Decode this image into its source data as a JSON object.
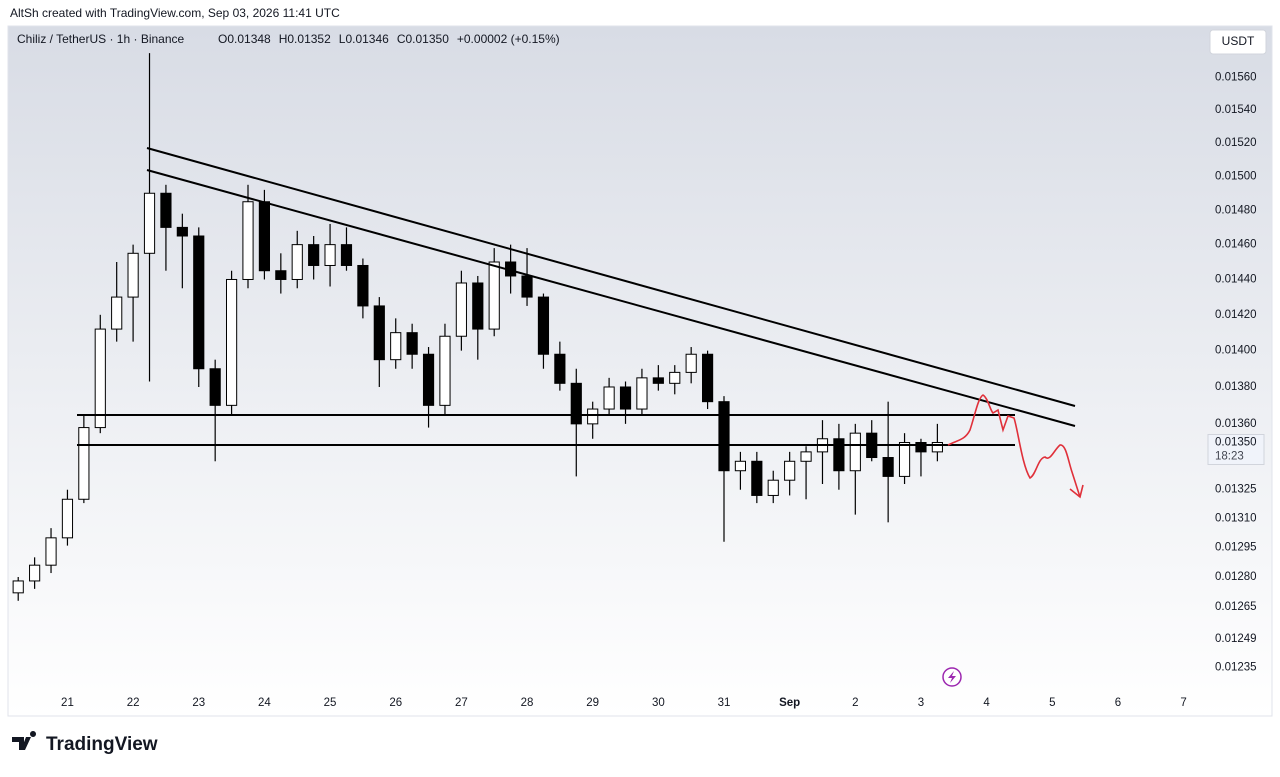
{
  "header": "AltSh created with TradingView.com, Sep 03, 2026 11:41 UTC",
  "brand": "TradingView",
  "chart_data": {
    "type": "candlestick",
    "symbol": "Chiliz / TetherUS · 1h · Binance",
    "legend_values": [
      "O0.01348",
      "H0.01352",
      "L0.01346",
      "C0.01350",
      "+0.00002 (+0.15%)"
    ],
    "currency": "USDT",
    "last_price": {
      "value": 0.0135,
      "label": "0.01350"
    },
    "countdown": "18:23",
    "log": true,
    "grid": false,
    "up_color": "#ffffff",
    "down_color": "#000000",
    "edge_color": "#000000",
    "ylim": [
      0.01224,
      0.01592
    ],
    "yticks": [
      {
        "value": 0.0156,
        "label": "0.01560"
      },
      {
        "value": 0.0154,
        "label": "0.01540"
      },
      {
        "value": 0.0152,
        "label": "0.01520"
      },
      {
        "value": 0.015,
        "label": "0.01500"
      },
      {
        "value": 0.0148,
        "label": "0.01480"
      },
      {
        "value": 0.0146,
        "label": "0.01460"
      },
      {
        "value": 0.0144,
        "label": "0.01440"
      },
      {
        "value": 0.0142,
        "label": "0.01420"
      },
      {
        "value": 0.014,
        "label": "0.01400"
      },
      {
        "value": 0.0138,
        "label": "0.01380"
      },
      {
        "value": 0.0136,
        "label": "0.01360"
      },
      {
        "value": 0.01325,
        "label": "0.01325"
      },
      {
        "value": 0.0131,
        "label": "0.01310"
      },
      {
        "value": 0.01295,
        "label": "0.01295"
      },
      {
        "value": 0.0128,
        "label": "0.01280"
      },
      {
        "value": 0.01265,
        "label": "0.01265"
      },
      {
        "value": 0.01249,
        "label": "0.01249"
      },
      {
        "value": 0.01235,
        "label": "0.01235"
      }
    ],
    "xlim": [
      "2026-08-20 03:00",
      "2026-09-07 06:00"
    ],
    "xticks": [
      {
        "value": "2026-08-21 00:00",
        "label": "21"
      },
      {
        "value": "2026-08-22 00:00",
        "label": "22"
      },
      {
        "value": "2026-08-23 00:00",
        "label": "23"
      },
      {
        "value": "2026-08-24 00:00",
        "label": "24"
      },
      {
        "value": "2026-08-25 00:00",
        "label": "25"
      },
      {
        "value": "2026-08-26 00:00",
        "label": "26"
      },
      {
        "value": "2026-08-27 00:00",
        "label": "27"
      },
      {
        "value": "2026-08-28 00:00",
        "label": "28"
      },
      {
        "value": "2026-08-29 00:00",
        "label": "29"
      },
      {
        "value": "2026-08-30 00:00",
        "label": "30"
      },
      {
        "value": "2026-08-31 00:00",
        "label": "31"
      },
      {
        "value": "2026-09-01 00:00",
        "label": "Sep"
      },
      {
        "value": "2026-09-02 00:00",
        "label": "2"
      },
      {
        "value": "2026-09-03 00:00",
        "label": "3"
      },
      {
        "value": "2026-09-04 00:00",
        "label": "4"
      },
      {
        "value": "2026-09-05 00:00",
        "label": "5"
      },
      {
        "value": "2026-09-06 00:00",
        "label": "6"
      },
      {
        "value": "2026-09-07 00:00",
        "label": "7"
      }
    ],
    "x": [
      "2026-08-20 06:00",
      "2026-08-20 12:00",
      "2026-08-20 18:00",
      "2026-08-21 00:00",
      "2026-08-21 06:00",
      "2026-08-21 12:00",
      "2026-08-21 18:00",
      "2026-08-22 00:00",
      "2026-08-22 06:00",
      "2026-08-22 12:00",
      "2026-08-22 18:00",
      "2026-08-23 00:00",
      "2026-08-23 06:00",
      "2026-08-23 12:00",
      "2026-08-23 18:00",
      "2026-08-24 00:00",
      "2026-08-24 06:00",
      "2026-08-24 12:00",
      "2026-08-24 18:00",
      "2026-08-25 00:00",
      "2026-08-25 06:00",
      "2026-08-25 12:00",
      "2026-08-25 18:00",
      "2026-08-26 00:00",
      "2026-08-26 06:00",
      "2026-08-26 12:00",
      "2026-08-26 18:00",
      "2026-08-27 00:00",
      "2026-08-27 06:00",
      "2026-08-27 12:00",
      "2026-08-27 18:00",
      "2026-08-28 00:00",
      "2026-08-28 06:00",
      "2026-08-28 12:00",
      "2026-08-28 18:00",
      "2026-08-29 00:00",
      "2026-08-29 06:00",
      "2026-08-29 12:00",
      "2026-08-29 18:00",
      "2026-08-30 00:00",
      "2026-08-30 06:00",
      "2026-08-30 12:00",
      "2026-08-30 18:00",
      "2026-08-31 00:00",
      "2026-08-31 06:00",
      "2026-08-31 12:00",
      "2026-08-31 18:00",
      "2026-09-01 00:00",
      "2026-09-01 06:00",
      "2026-09-01 12:00",
      "2026-09-01 18:00",
      "2026-09-02 00:00",
      "2026-09-02 06:00",
      "2026-09-02 12:00",
      "2026-09-02 18:00",
      "2026-09-03 00:00",
      "2026-09-03 06:00"
    ],
    "open": [
      0.01272,
      0.01278,
      0.01286,
      0.013,
      0.0132,
      0.01358,
      0.01412,
      0.0143,
      0.01455,
      0.0149,
      0.0147,
      0.01465,
      0.0139,
      0.0137,
      0.0144,
      0.01485,
      0.01445,
      0.0144,
      0.0146,
      0.01448,
      0.0146,
      0.01448,
      0.01425,
      0.01395,
      0.0141,
      0.01398,
      0.0137,
      0.01408,
      0.01438,
      0.01412,
      0.0145,
      0.01442,
      0.0143,
      0.01398,
      0.01382,
      0.0136,
      0.01368,
      0.0138,
      0.01368,
      0.01385,
      0.01382,
      0.01388,
      0.01398,
      0.01372,
      0.01335,
      0.0134,
      0.01322,
      0.0133,
      0.0134,
      0.01345,
      0.01352,
      0.01335,
      0.01355,
      0.01342,
      0.01332,
      0.0135,
      0.01345
    ],
    "high": [
      0.0128,
      0.0129,
      0.01305,
      0.01325,
      0.01365,
      0.0142,
      0.0145,
      0.0146,
      0.01575,
      0.01495,
      0.01478,
      0.0147,
      0.01395,
      0.01445,
      0.01495,
      0.01492,
      0.01455,
      0.01468,
      0.01465,
      0.01472,
      0.0147,
      0.01452,
      0.0143,
      0.01418,
      0.01415,
      0.01402,
      0.01415,
      0.01445,
      0.01442,
      0.01458,
      0.0146,
      0.01458,
      0.01432,
      0.01405,
      0.0139,
      0.01372,
      0.01385,
      0.01383,
      0.0139,
      0.01392,
      0.01392,
      0.01402,
      0.014,
      0.01375,
      0.01345,
      0.01345,
      0.01335,
      0.01345,
      0.01348,
      0.01362,
      0.0136,
      0.0136,
      0.01362,
      0.01372,
      0.01355,
      0.01352,
      0.0136
    ],
    "low": [
      0.01268,
      0.01274,
      0.01282,
      0.01296,
      0.01318,
      0.01355,
      0.01405,
      0.01405,
      0.01383,
      0.01445,
      0.01435,
      0.0138,
      0.0134,
      0.01365,
      0.01435,
      0.0144,
      0.01432,
      0.01435,
      0.0144,
      0.01436,
      0.01445,
      0.01418,
      0.0138,
      0.0139,
      0.0139,
      0.01358,
      0.01365,
      0.014,
      0.01395,
      0.01408,
      0.01432,
      0.01425,
      0.0139,
      0.01378,
      0.01332,
      0.01352,
      0.01365,
      0.0136,
      0.01365,
      0.01378,
      0.01376,
      0.01382,
      0.01368,
      0.01298,
      0.01325,
      0.01318,
      0.01318,
      0.01322,
      0.0132,
      0.01328,
      0.01325,
      0.01312,
      0.0134,
      0.01308,
      0.01328,
      0.01332,
      0.0134
    ],
    "close": [
      0.01278,
      0.01286,
      0.013,
      0.0132,
      0.01358,
      0.01412,
      0.0143,
      0.01455,
      0.0149,
      0.0147,
      0.01465,
      0.0139,
      0.0137,
      0.0144,
      0.01485,
      0.01445,
      0.0144,
      0.0146,
      0.01448,
      0.0146,
      0.01448,
      0.01425,
      0.01395,
      0.0141,
      0.01398,
      0.0137,
      0.01408,
      0.01438,
      0.01412,
      0.0145,
      0.01442,
      0.0143,
      0.01398,
      0.01382,
      0.0136,
      0.01368,
      0.0138,
      0.01368,
      0.01385,
      0.01382,
      0.01388,
      0.01398,
      0.01372,
      0.01335,
      0.0134,
      0.01322,
      0.0133,
      0.0134,
      0.01345,
      0.01352,
      0.01335,
      0.01355,
      0.01342,
      0.01332,
      0.0135,
      0.01345,
      0.0135
    ]
  }
}
